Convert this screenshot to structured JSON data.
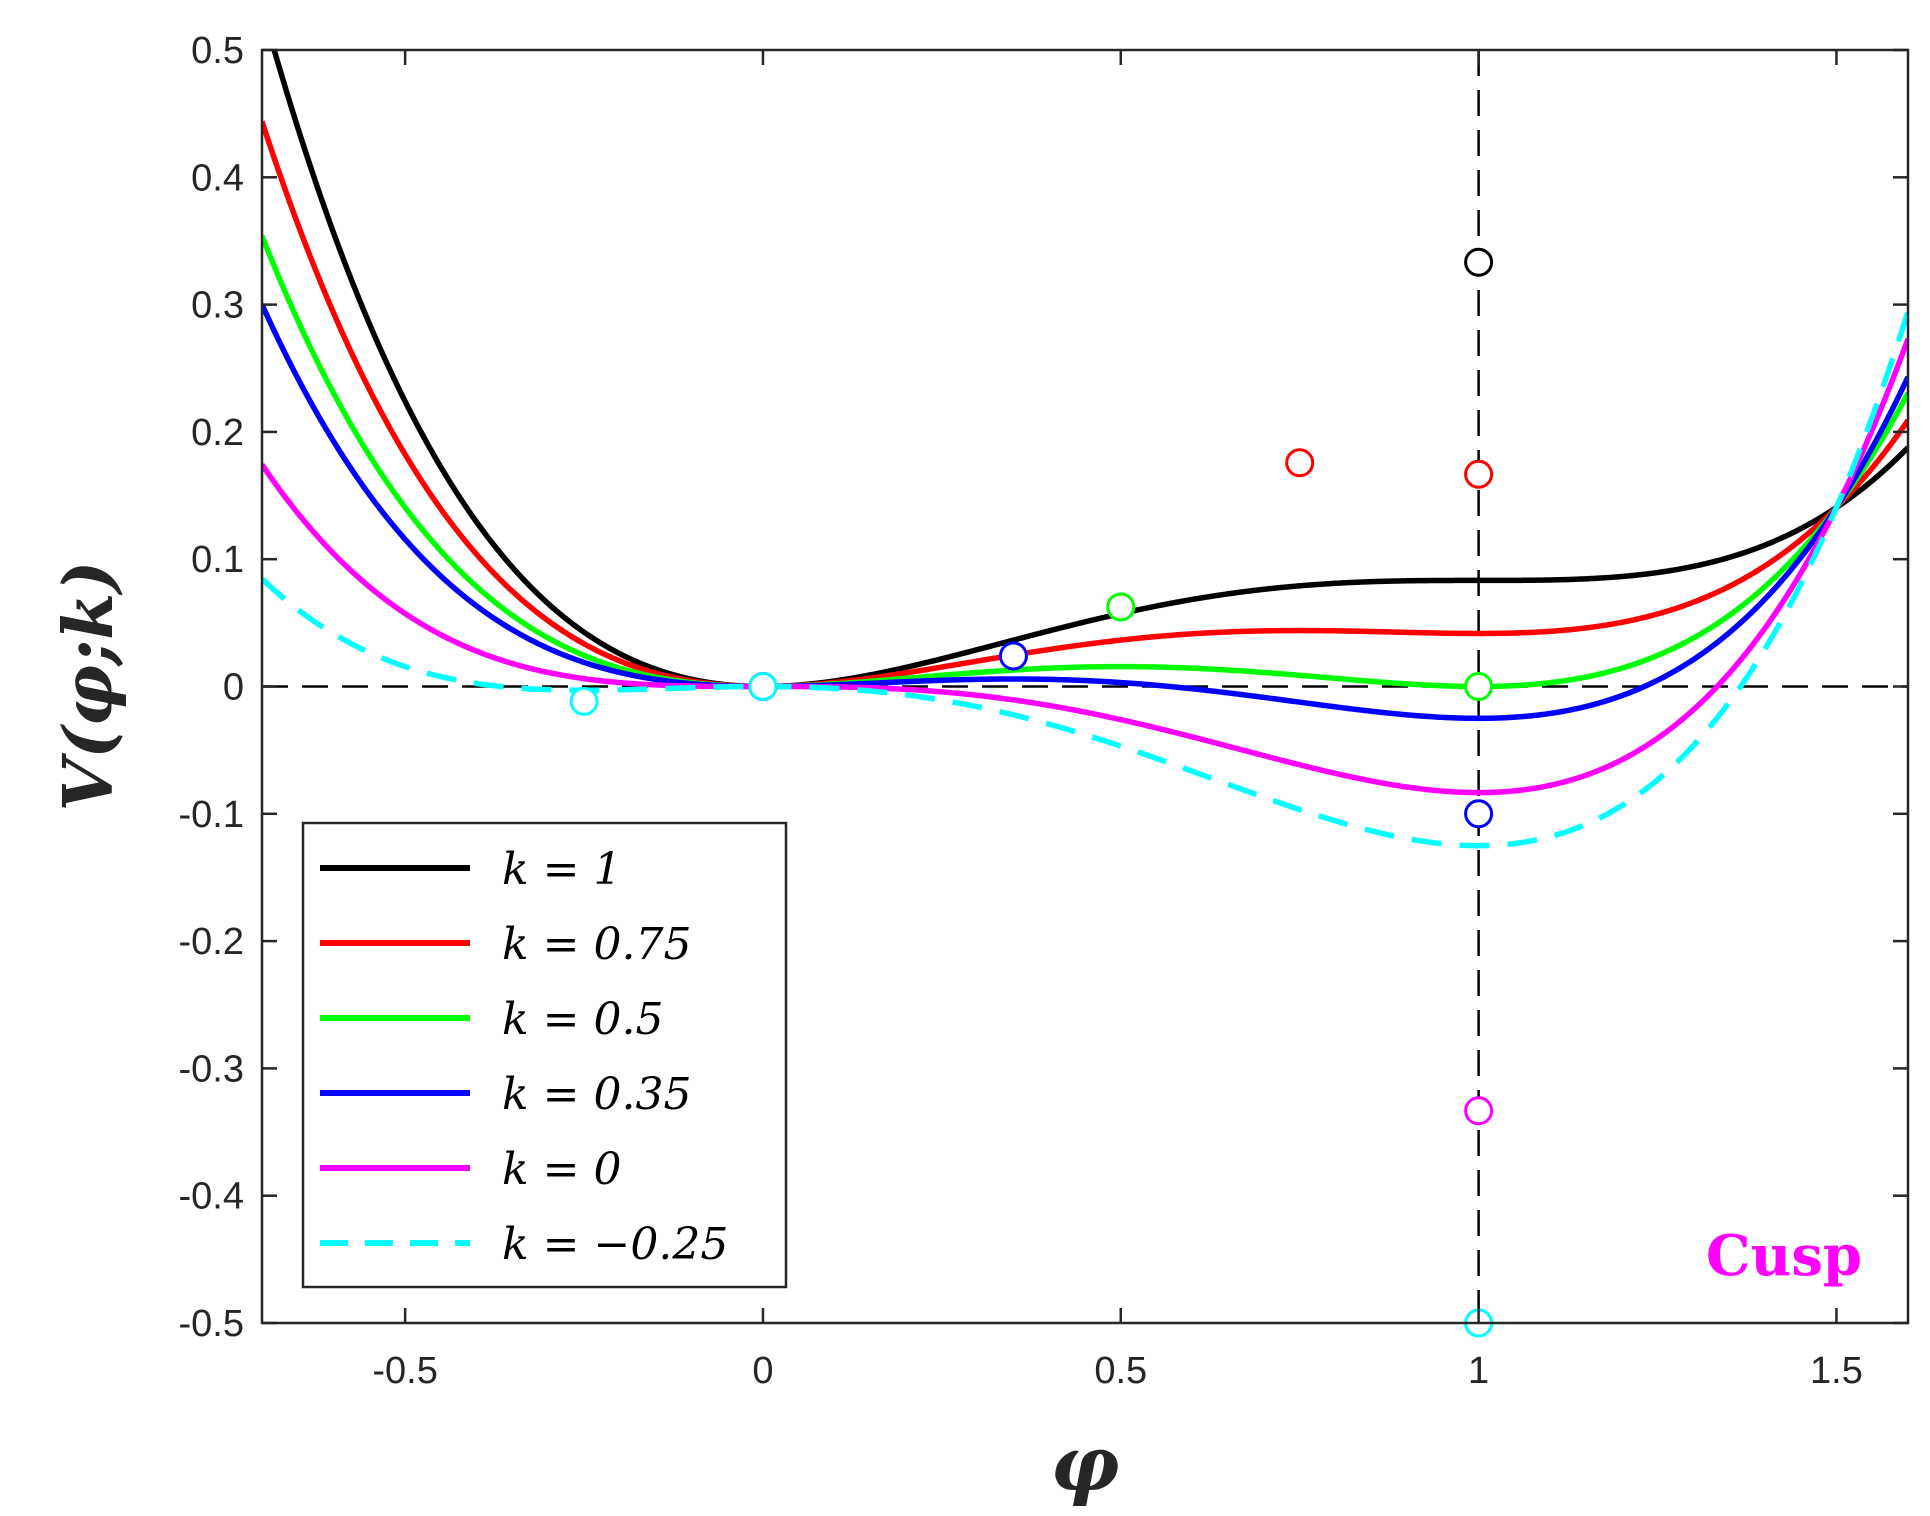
{
  "chart_data": {
    "type": "line",
    "xlabel": "φ",
    "ylabel": "V(φ;k)",
    "xlim": [
      -0.7,
      1.6
    ],
    "ylim": [
      -0.5,
      0.5
    ],
    "x_ticks": [
      -0.5,
      0,
      0.5,
      1,
      1.5
    ],
    "x_tick_labels": [
      "-0.5",
      "0",
      "0.5",
      "1",
      "1.5"
    ],
    "y_ticks": [
      -0.5,
      -0.4,
      -0.3,
      -0.2,
      -0.1,
      0,
      0.1,
      0.2,
      0.3,
      0.4,
      0.5
    ],
    "y_tick_labels": [
      "-0.5",
      "-0.4",
      "-0.3",
      "-0.2",
      "-0.1",
      "0",
      "0.1",
      "0.2",
      "0.3",
      "0.4",
      "0.5"
    ],
    "reference_lines": [
      {
        "orientation": "horizontal",
        "value": 0,
        "style": "dashed",
        "color": "#000000"
      },
      {
        "orientation": "vertical",
        "value": 1,
        "style": "dashed",
        "color": "#000000"
      }
    ],
    "legend_position": "bottom-left",
    "annotation": {
      "text": "Cusp",
      "color": "#ff00ff",
      "position": "bottom-right"
    },
    "series": [
      {
        "name": "k = 1",
        "k": 1,
        "color": "#000000",
        "style": "solid",
        "critical_points": [
          {
            "x": 0,
            "y": 0
          },
          {
            "x": 1,
            "y": 0.3333
          }
        ]
      },
      {
        "name": "k = 0.75",
        "k": 0.75,
        "color": "#ff0000",
        "style": "solid",
        "critical_points": [
          {
            "x": 0,
            "y": 0
          },
          {
            "x": 0.75,
            "y": 0.1758
          },
          {
            "x": 1,
            "y": 0.1667
          }
        ]
      },
      {
        "name": "k = 0.5",
        "k": 0.5,
        "color": "#00ff00",
        "style": "solid",
        "critical_points": [
          {
            "x": 0,
            "y": 0
          },
          {
            "x": 0.5,
            "y": 0.0625
          },
          {
            "x": 1,
            "y": 0
          }
        ]
      },
      {
        "name": "k = 0.35",
        "k": 0.35,
        "color": "#0000ff",
        "style": "solid",
        "critical_points": [
          {
            "x": 0,
            "y": 0
          },
          {
            "x": 0.35,
            "y": 0.024
          },
          {
            "x": 1,
            "y": -0.1
          }
        ]
      },
      {
        "name": "k = 0",
        "k": 0,
        "color": "#ff00ff",
        "style": "solid",
        "critical_points": [
          {
            "x": 0,
            "y": 0
          },
          {
            "x": 1,
            "y": -0.3333
          }
        ]
      },
      {
        "name": "k = −0.25",
        "k": -0.25,
        "color": "#00ffff",
        "style": "dashed",
        "critical_points": [
          {
            "x": -0.25,
            "y": -0.0117
          },
          {
            "x": 0,
            "y": 0
          },
          {
            "x": 1,
            "y": -0.5
          }
        ]
      }
    ]
  }
}
